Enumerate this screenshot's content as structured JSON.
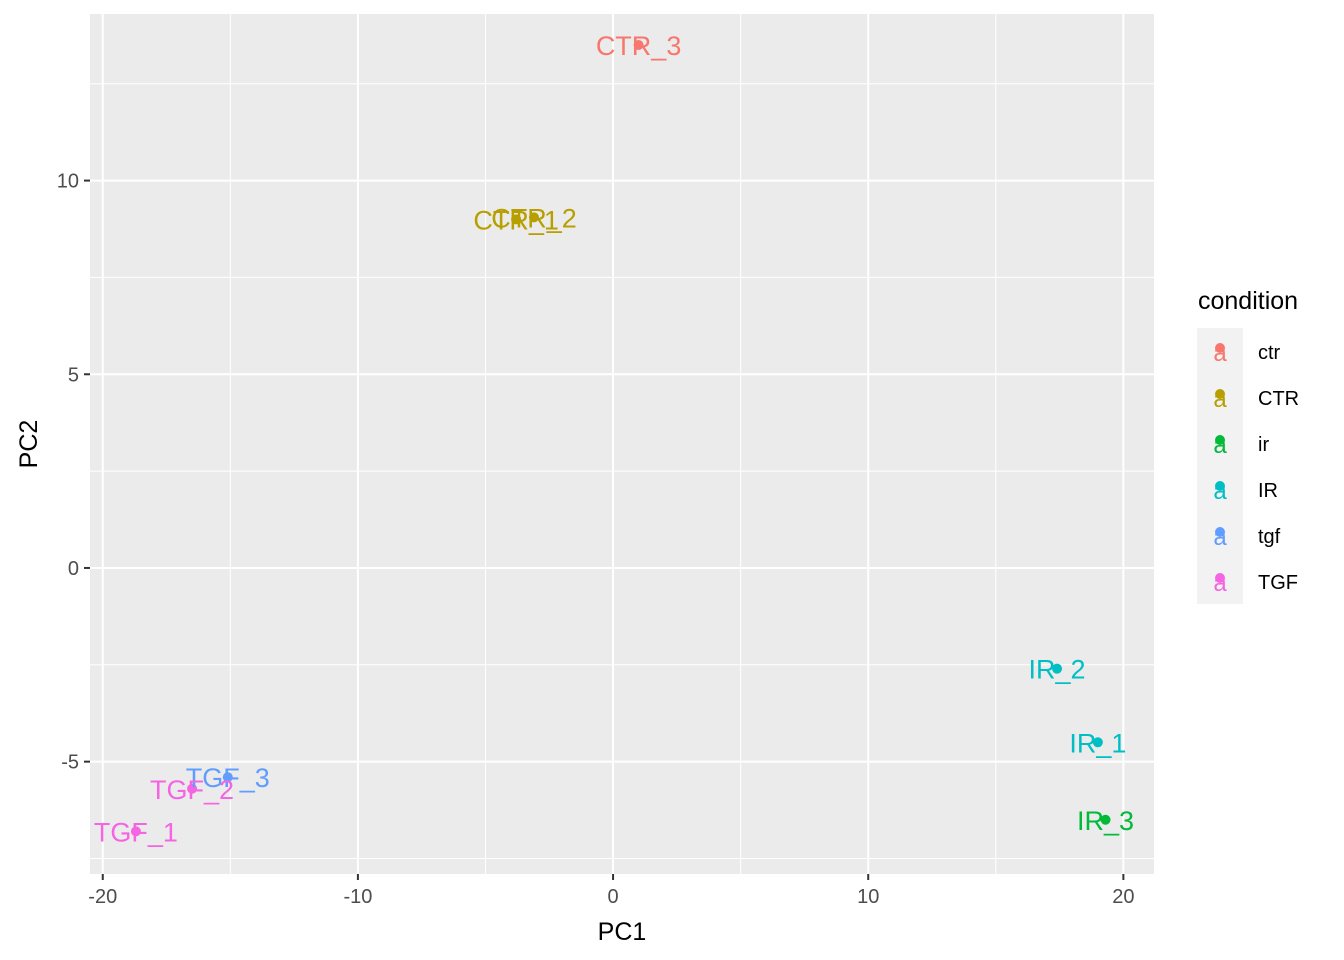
{
  "chart_data": {
    "type": "scatter",
    "title": "",
    "xlabel": "PC1",
    "ylabel": "PC2",
    "xlim": [
      -20.5,
      21.2
    ],
    "ylim": [
      -7.9,
      14.3
    ],
    "x_ticks": [
      -20,
      -10,
      0,
      10,
      20
    ],
    "x_tick_labels": [
      "-20",
      "-10",
      "0",
      "10",
      "20"
    ],
    "y_ticks": [
      -5,
      0,
      5,
      10
    ],
    "y_tick_labels": [
      "-5",
      "0",
      "5",
      "10"
    ],
    "grid": true,
    "legend": {
      "title": "condition",
      "position": "right",
      "entries": [
        {
          "label": "ctr",
          "color": "#F8766D"
        },
        {
          "label": "CTR",
          "color": "#B79F00"
        },
        {
          "label": "ir",
          "color": "#00BA38"
        },
        {
          "label": "IR",
          "color": "#00BFC4"
        },
        {
          "label": "tgf",
          "color": "#619CFF"
        },
        {
          "label": "TGF",
          "color": "#F564E3"
        }
      ],
      "key_glyph": "a"
    },
    "points": [
      {
        "label": "CTR_3",
        "condition": "ctr",
        "x": 1.0,
        "y": 13.5
      },
      {
        "label": "CTR_1",
        "condition": "CTR",
        "x": -3.8,
        "y": 9.0
      },
      {
        "label": "CTR_2",
        "condition": "CTR",
        "x": -3.1,
        "y": 9.05
      },
      {
        "label": "IR_2",
        "condition": "IR",
        "x": 17.4,
        "y": -2.6
      },
      {
        "label": "IR_1",
        "condition": "IR",
        "x": 19.0,
        "y": -4.5
      },
      {
        "label": "IR_3",
        "condition": "ir",
        "x": 19.3,
        "y": -6.5
      },
      {
        "label": "TGF_3",
        "condition": "tgf",
        "x": -15.1,
        "y": -5.4
      },
      {
        "label": "TGF_2",
        "condition": "TGF",
        "x": -16.5,
        "y": -5.7
      },
      {
        "label": "TGF_1",
        "condition": "TGF",
        "x": -18.7,
        "y": -6.8
      }
    ]
  }
}
